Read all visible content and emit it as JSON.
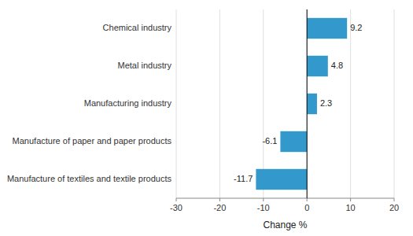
{
  "chart_data": {
    "type": "bar",
    "orientation": "horizontal",
    "categories": [
      "Manufacture of textiles and textile products",
      "Manufacture of paper and paper products",
      "Manufacturing industry",
      "Metal industry",
      "Chemical industry"
    ],
    "values": [
      -11.7,
      -6.1,
      2.3,
      4.8,
      9.2
    ],
    "color": "#3399cc",
    "xlabel": "Change %",
    "xlim": [
      -30,
      20
    ],
    "xticks": [
      -30,
      -20,
      -10,
      0,
      10,
      20
    ],
    "grid": true,
    "data_labels": true
  }
}
